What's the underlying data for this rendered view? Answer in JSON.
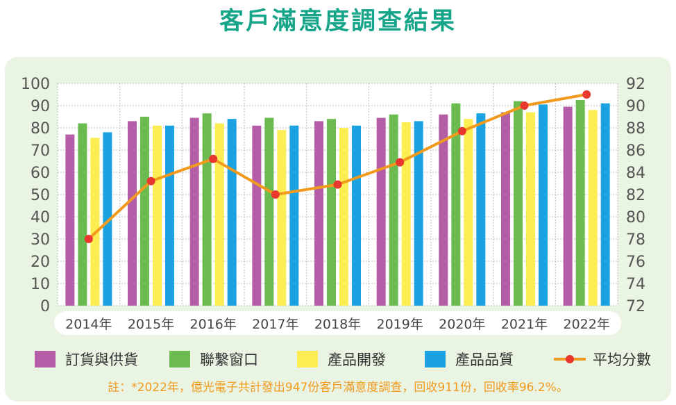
{
  "title": "客戶滿意度調查結果",
  "note": "註：*2022年，億光電子共計發出947份客戶滿意度調查，回收911份，回收率96.2%。",
  "chart_data": {
    "type": "bar",
    "categories": [
      "2014年",
      "2015年",
      "2016年",
      "2017年",
      "2018年",
      "2019年",
      "2020年",
      "2021年",
      "2022年"
    ],
    "series": [
      {
        "name": "訂貨與供貨",
        "color": "#b35ea6",
        "values": [
          77,
          83,
          84.5,
          81,
          83,
          84.5,
          86,
          87,
          89.5
        ]
      },
      {
        "name": "聯繫窗口",
        "color": "#6cbb50",
        "values": [
          82,
          85,
          86.5,
          84.5,
          84,
          86,
          91,
          92,
          92.5
        ]
      },
      {
        "name": "產品開發",
        "color": "#fcee52",
        "values": [
          75.5,
          81,
          82,
          79,
          80,
          82.5,
          84,
          87,
          88
        ]
      },
      {
        "name": "產品品質",
        "color": "#1aa3e0",
        "values": [
          78,
          81,
          84,
          81,
          81,
          83,
          86.5,
          90.5,
          91
        ]
      }
    ],
    "line_series": {
      "name": "平均分數",
      "line_color": "#f29a1e",
      "marker_color": "#e8372c",
      "values": [
        78,
        83.2,
        85.2,
        82,
        82.9,
        84.9,
        87.7,
        90,
        91
      ]
    },
    "ylim": [
      0,
      100
    ],
    "yticks": [
      0,
      10,
      20,
      30,
      40,
      50,
      60,
      70,
      80,
      90,
      100
    ],
    "y2lim": [
      72,
      92
    ],
    "y2ticks": [
      72,
      74,
      76,
      78,
      80,
      82,
      84,
      86,
      88,
      90,
      92
    ],
    "grid": true,
    "legend_position": "bottom"
  }
}
